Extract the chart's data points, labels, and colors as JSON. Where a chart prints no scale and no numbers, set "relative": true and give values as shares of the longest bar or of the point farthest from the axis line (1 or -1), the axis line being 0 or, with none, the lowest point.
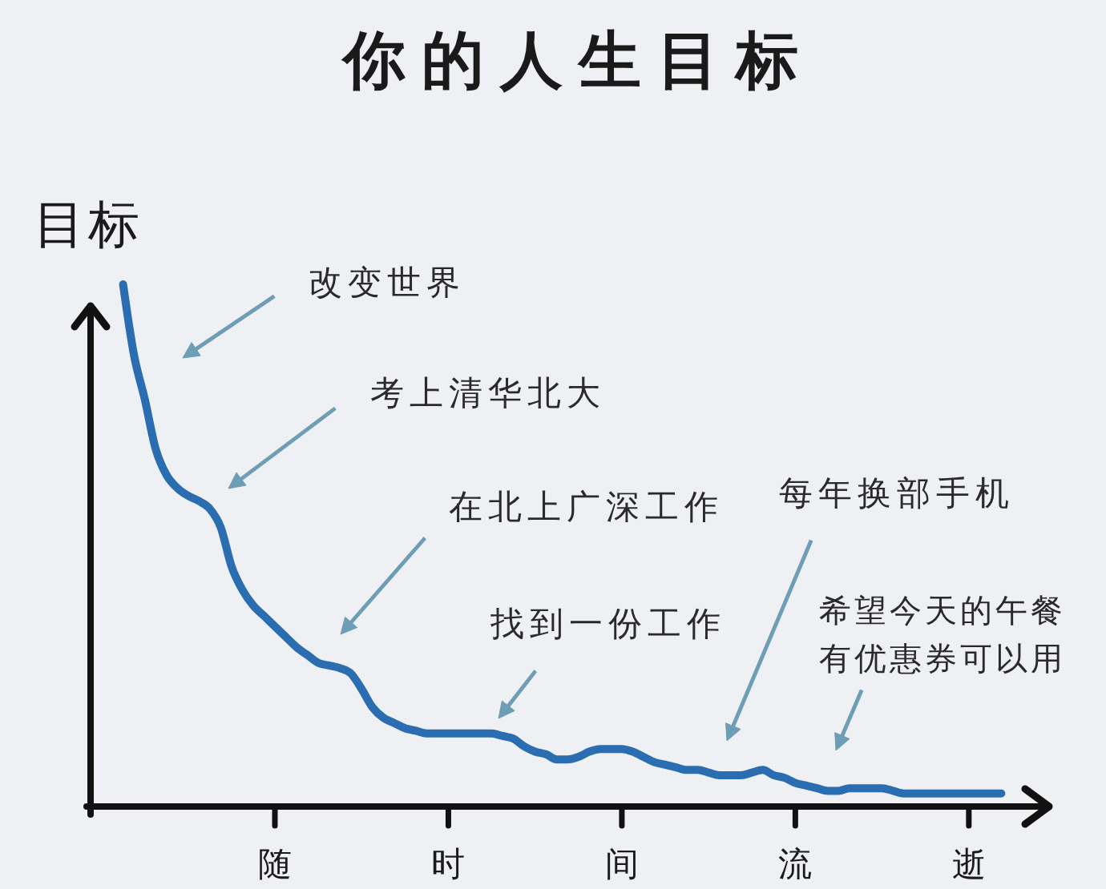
{
  "chart_data": {
    "type": "line",
    "title": "你的人生目标",
    "ylabel": "目标",
    "relative": true,
    "categories": [
      null,
      null,
      null,
      null,
      null,
      null,
      null,
      null,
      null,
      null,
      null,
      null,
      null,
      null,
      "随",
      null,
      null,
      null,
      null,
      null,
      null,
      null,
      null,
      null,
      null,
      null,
      null,
      null,
      null,
      null,
      "时",
      null,
      null,
      null,
      null,
      null,
      null,
      null,
      null,
      null,
      null,
      null,
      null,
      null,
      null,
      null,
      "间",
      null,
      null,
      null,
      null,
      null,
      null,
      null,
      null,
      null,
      null,
      null,
      null,
      null,
      null,
      null,
      "流",
      null,
      null,
      null,
      null,
      null,
      null,
      null,
      null,
      null,
      null,
      null,
      null,
      null,
      null,
      null,
      "逝",
      null,
      null,
      null
    ],
    "series": [
      {
        "color": "#2a6db0",
        "values": [
          1,
          0.865,
          0.78,
          0.685,
          0.635,
          0.61,
          0.595,
          0.585,
          0.57,
          0.535,
          0.46,
          0.415,
          0.385,
          0.365,
          0.345,
          0.325,
          0.305,
          0.29,
          0.275,
          0.27,
          0.265,
          0.255,
          0.225,
          0.19,
          0.17,
          0.16,
          0.15,
          0.145,
          0.14,
          0.14,
          0.14,
          0.14,
          0.14,
          0.14,
          0.14,
          0.135,
          0.13,
          0.115,
          0.105,
          0.1,
          0.09,
          0.09,
          0.095,
          0.105,
          0.11,
          0.11,
          0.11,
          0.105,
          0.095,
          0.085,
          0.08,
          0.075,
          0.07,
          0.07,
          0.065,
          0.06,
          0.06,
          0.06,
          0.065,
          0.07,
          0.06,
          0.055,
          0.045,
          0.04,
          0.035,
          0.03,
          0.03,
          0.035,
          0.035,
          0.035,
          0.035,
          0.03,
          0.025,
          0.025,
          0.025,
          0.025,
          0.025,
          0.025,
          0.025,
          0.025,
          0.025,
          0.025
        ]
      }
    ],
    "annotations": [
      "改变世界",
      "考上清华北大",
      "在北上广深工作",
      "找到一份工作",
      "每年换部手机",
      "希望今天的午餐有优惠券可以用"
    ]
  }
}
